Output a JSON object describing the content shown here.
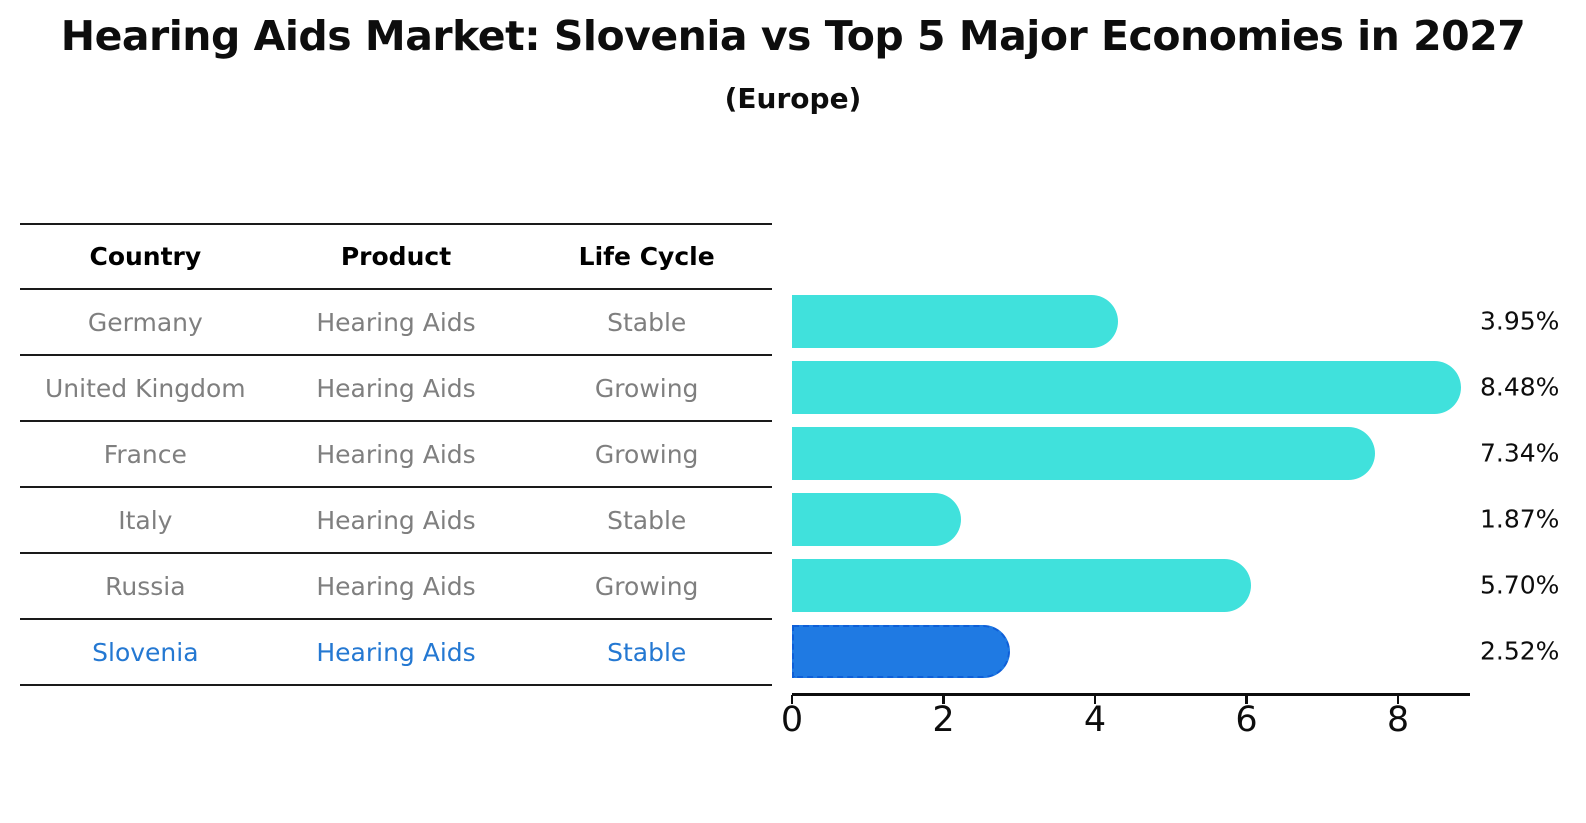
{
  "title": "Hearing Aids Market: Slovenia vs Top 5 Major Economies in 2027",
  "subtitle": "(Europe)",
  "table": {
    "headers": [
      "Country",
      "Product",
      "Life Cycle"
    ],
    "rows": [
      {
        "country": "Germany",
        "product": "Hearing Aids",
        "life_cycle": "Stable",
        "highlight": false
      },
      {
        "country": "United Kingdom",
        "product": "Hearing Aids",
        "life_cycle": "Growing",
        "highlight": false
      },
      {
        "country": "France",
        "product": "Hearing Aids",
        "life_cycle": "Growing",
        "highlight": false
      },
      {
        "country": "Italy",
        "product": "Hearing Aids",
        "life_cycle": "Stable",
        "highlight": false
      },
      {
        "country": "Russia",
        "product": "Hearing Aids",
        "life_cycle": "Growing",
        "highlight": false
      },
      {
        "country": "Slovenia",
        "product": "Hearing Aids",
        "life_cycle": "Stable",
        "highlight": true
      }
    ]
  },
  "chart_data": {
    "type": "bar",
    "orientation": "horizontal",
    "title": "Hearing Aids Market: Slovenia vs Top 5 Major Economies in 2027 (Europe)",
    "categories": [
      "Germany",
      "United Kingdom",
      "France",
      "Italy",
      "Russia",
      "Slovenia"
    ],
    "values": [
      3.95,
      8.48,
      7.34,
      1.87,
      5.7,
      2.52
    ],
    "value_labels": [
      "3.95%",
      "8.48%",
      "7.34%",
      "1.87%",
      "5.70%",
      "2.52%"
    ],
    "x_ticks": [
      0,
      2,
      4,
      6,
      8
    ],
    "xlim": [
      0,
      8.95
    ],
    "xlabel": "",
    "ylabel": "",
    "grid": false,
    "legend": false,
    "bar_color": "#40E1DC",
    "highlight_color": "#1F7AE3",
    "highlight_border_color": "#0E5FD8",
    "highlight_index": 5
  },
  "colors": {
    "bar_cyan": "#40E1DC",
    "bar_blue": "#1F7AE3",
    "highlight_text_blue": "#2478d2",
    "table_text_gray": "#7f7f7f",
    "text_black": "#0d0d0d"
  }
}
